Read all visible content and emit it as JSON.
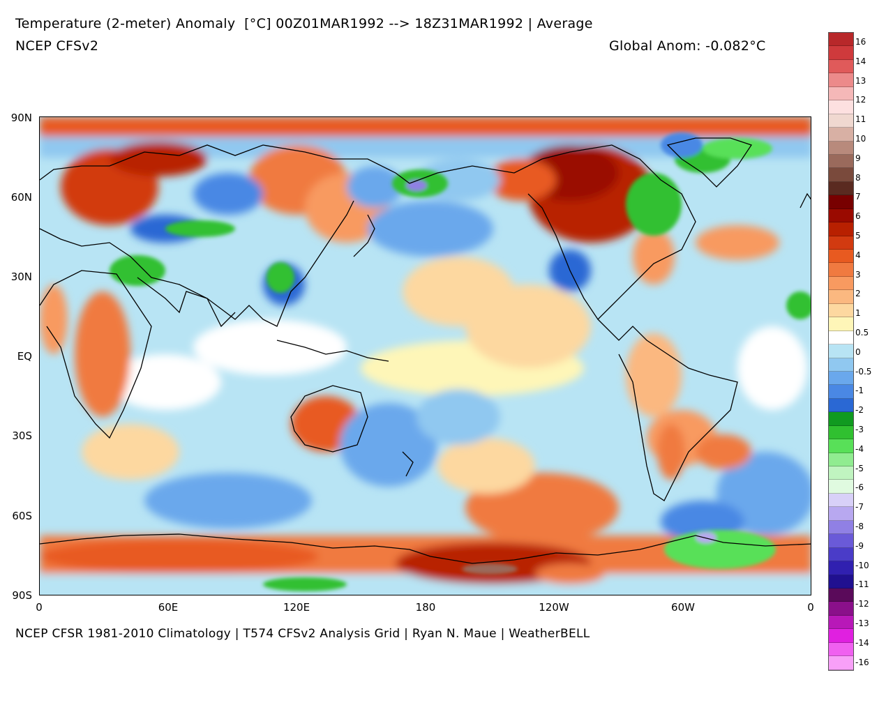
{
  "header": {
    "title": "Temperature (2-meter) Anomaly  [°C] 00Z01MAR1992 --> 18Z31MAR1992 | Average",
    "model": "NCEP CFSv2",
    "global_anom": "Global Anom: -0.082°C"
  },
  "footer": {
    "credit": "NCEP CFSR 1981-2010 Climatology | T574 CFSv2 Analysis Grid | Ryan N. Maue | WeatherBELL"
  },
  "map": {
    "projection": "equirectangular",
    "lon_range": [
      0,
      360
    ],
    "lat_range": [
      -90,
      90
    ],
    "lat_labels": [
      "90N",
      "60N",
      "30N",
      "EQ",
      "30S",
      "60S",
      "90S"
    ],
    "lon_labels": [
      "0",
      "60E",
      "120E",
      "180",
      "120W",
      "60W",
      "0"
    ],
    "anomaly_regions": [
      {
        "name": "arctic-warm",
        "value": 4
      },
      {
        "name": "scandinavia-warm",
        "value": 3
      },
      {
        "name": "north-america-west-warm",
        "value": 5
      },
      {
        "name": "greenland-cold",
        "value": -4
      },
      {
        "name": "hudson-bay-cold",
        "value": -4
      },
      {
        "name": "alaska-north-cold",
        "value": -6
      },
      {
        "name": "central-asia-cold",
        "value": -4
      },
      {
        "name": "china-cold",
        "value": -3
      },
      {
        "name": "australia-warm",
        "value": 2
      },
      {
        "name": "south-pacific-warm",
        "value": 2
      },
      {
        "name": "antarctica-pacific-warm",
        "value": 6
      },
      {
        "name": "antarctica-weddell-cold",
        "value": -7
      },
      {
        "name": "east-antarctica-cold",
        "value": -4
      }
    ]
  },
  "colorbar": {
    "labels": [
      "16",
      "14",
      "13",
      "12",
      "11",
      "10",
      "9",
      "8",
      "7",
      "6",
      "5",
      "4",
      "3",
      "2",
      "1",
      "0.5",
      "0",
      "-0.5",
      "-1",
      "-2",
      "-3",
      "-4",
      "-5",
      "-6",
      "-7",
      "-8",
      "-9",
      "-10",
      "-11",
      "-12",
      "-13",
      "-14",
      "-16"
    ],
    "colors": [
      "#b8282a",
      "#cf3a3c",
      "#e05a5a",
      "#ec8a8a",
      "#f5b8b8",
      "#fde0e0",
      "#f0d8d0",
      "#d8b0a4",
      "#b88a7c",
      "#9a6a5c",
      "#7a4a3c",
      "#5a2a20",
      "#780000",
      "#9a0a00",
      "#b82000",
      "#d23a10",
      "#e85a20",
      "#f07a40",
      "#f89a60",
      "#fbb880",
      "#fdd8a0",
      "#fef6b8",
      "#ffffff",
      "#b8e4f4",
      "#90c8f0",
      "#6aa8ec",
      "#4a88e4",
      "#2a68d4",
      "#109a20",
      "#30c030",
      "#58e058",
      "#90ec90",
      "#c0f4c0",
      "#e0fae0",
      "#d8d0f8",
      "#b8a8f0",
      "#9080e4",
      "#6a5ad8",
      "#4a3cc8",
      "#3020b0",
      "#201090",
      "#5a0a5a",
      "#8a108a",
      "#b818b8",
      "#e020e0",
      "#f060f0",
      "#f8a0f8"
    ]
  }
}
